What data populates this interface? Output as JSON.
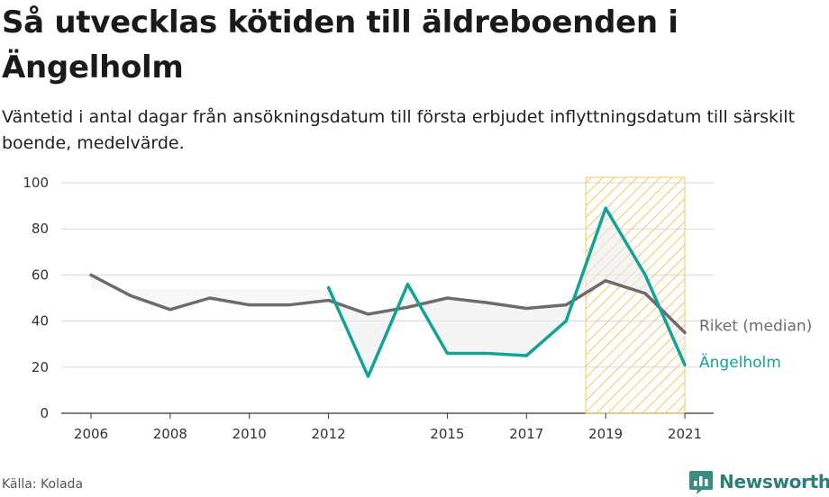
{
  "title": "Så utvecklas kötiden till äldreboenden i Ängelholm",
  "subtitle": "Väntetid i antal dagar från ansökningsdatum till första erbjudet inflyttningsdatum till särskilt boende, medelvärde.",
  "source": "Källa: Kolada",
  "brand": {
    "name": "Newsworthy",
    "icon": "newsworthy-logo-icon"
  },
  "colors": {
    "riket": "#6e6b70",
    "angelholm": "#13a395",
    "highlight": "#f3c85e",
    "grid": "#d9d9d9",
    "fill": "#ececec"
  },
  "chart_data": {
    "type": "line",
    "x_ticks": [
      2006,
      2008,
      2010,
      2012,
      2015,
      2017,
      2019,
      2021
    ],
    "y_ticks": [
      0,
      20,
      40,
      60,
      80,
      100
    ],
    "ylim": [
      0,
      100
    ],
    "xlim": [
      2006,
      2021
    ],
    "highlight_range": [
      2018.5,
      2021
    ],
    "series": [
      {
        "name": "Riket (median)",
        "x": [
          2006,
          2007,
          2008,
          2009,
          2010,
          2011,
          2012,
          2013,
          2014,
          2015,
          2016,
          2017,
          2018,
          2019,
          2020,
          2021
        ],
        "y": [
          60,
          51,
          45,
          50,
          47,
          47,
          49,
          43,
          46,
          50,
          48,
          45.5,
          47,
          57.5,
          52,
          35
        ]
      },
      {
        "name": "Ängelholm",
        "x": [
          2012,
          2013,
          2014,
          2015,
          2016,
          2017,
          2018,
          2019,
          2020,
          2021
        ],
        "y": [
          54.5,
          16,
          56,
          26,
          26,
          25,
          40,
          89,
          60,
          21
        ]
      }
    ]
  }
}
